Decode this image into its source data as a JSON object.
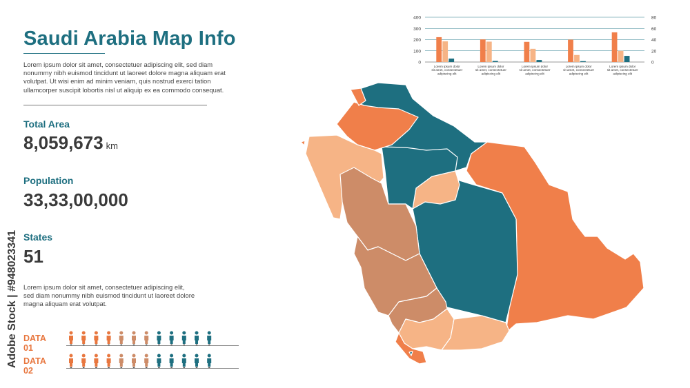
{
  "title": "Saudi Arabia Map Info",
  "intro_text": "Lorem ipsum dolor sit amet, consectetuer adipiscing elit, sed diam nonummy nibh euismod tincidunt ut laoreet dolore magna aliquam erat volutpat. Ut wisi enim ad minim veniam, quis nostrud exerci tation ullamcorper suscipit lobortis nisl ut aliquip ex ea commodo consequat.",
  "stats": {
    "area_label": "Total Area",
    "area_value": "8,059,673",
    "area_unit": "km",
    "population_label": "Population",
    "population_value": "33,33,00,000",
    "states_label": "States",
    "states_value": "51"
  },
  "description_text": "Lorem ipsum dolor sit amet, consectetuer adipiscing elit, sed diam nonummy nibh euismod tincidunt ut laoreet dolore magna aliquam erat volutpat.",
  "data_rows": [
    {
      "label": "DATA 01",
      "people": [
        "#e8773f",
        "#e8773f",
        "#e8773f",
        "#e8773f",
        "#cd8c68",
        "#cd8c68",
        "#cd8c68",
        "#1e6f80",
        "#1e6f80",
        "#1e6f80",
        "#1e6f80",
        "#1e6f80"
      ]
    },
    {
      "label": "DATA 02",
      "people": [
        "#e8773f",
        "#e8773f",
        "#e8773f",
        "#e8773f",
        "#cd8c68",
        "#cd8c68",
        "#cd8c68",
        "#1e6f80",
        "#1e6f80",
        "#1e6f80",
        "#1e6f80",
        "#1e6f80"
      ]
    }
  ],
  "watermark": "Adobe Stock | #948023341",
  "colors": {
    "teal": "#1e6f80",
    "orange": "#f07f4a",
    "light_orange": "#f6b486",
    "brown": "#cd8c68"
  },
  "chart_data": {
    "type": "bar",
    "categories": [
      "Lorem ipsum dolor sit amet, consectetuer adipiscing elit",
      "Lorem ipsum dolor sit amet, consectetuer adipiscing elit",
      "Lorem ipsum dolor sit amet, consectetuer adipiscing elit",
      "Lorem ipsum dolor sit amet, consectetuer adipiscing elit",
      "Lorem ipsum dolor sit amet, consectetuer adipiscing elit"
    ],
    "series": [
      {
        "values": [
          222,
          202,
          180,
          200,
          265
        ],
        "color": "#f07f4a"
      },
      {
        "values": [
          185,
          182,
          118,
          63,
          100
        ],
        "color": "#f6b486"
      },
      {
        "values": [
          31,
          10,
          18,
          8,
          55
        ],
        "color": "#1e6f80"
      }
    ],
    "y_left_ticks": [
      "0",
      "100",
      "200",
      "300",
      "400"
    ],
    "y_right_ticks": [
      "0",
      "20",
      "40",
      "60",
      "80"
    ],
    "ylim": [
      0,
      400
    ],
    "grid": true
  }
}
